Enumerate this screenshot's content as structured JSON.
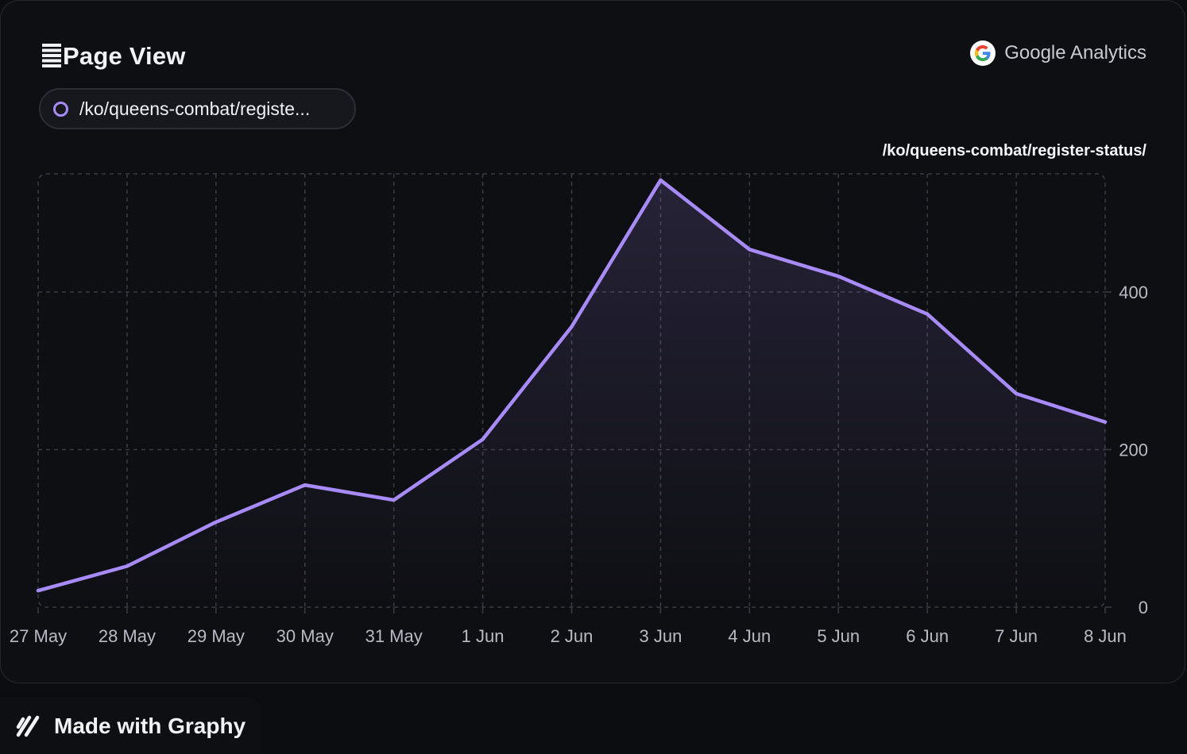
{
  "header": {
    "title": "Page View",
    "title_icon": "page-view-icon",
    "source_label": "Google Analytics",
    "source_icon": "google-logo-icon"
  },
  "legend": {
    "label": "/ko/queens-combat/registe..."
  },
  "series_title": "/ko/queens-combat/register-status/",
  "footer": {
    "label": "Made with Graphy",
    "icon": "graphy-logo-icon"
  },
  "colors": {
    "line": "#a78bfa",
    "background": "#0e0f13",
    "grid": "#3a3b42",
    "axis_text": "#b9bac2"
  },
  "chart_data": {
    "type": "area",
    "categories": [
      "27 May",
      "28 May",
      "29 May",
      "30 May",
      "31 May",
      "1 Jun",
      "2 Jun",
      "3 Jun",
      "4 Jun",
      "5 Jun",
      "6 Jun",
      "7 Jun",
      "8 Jun"
    ],
    "series": [
      {
        "name": "/ko/queens-combat/register-status/",
        "values": [
          21,
          52,
          108,
          155,
          136,
          213,
          356,
          542,
          454,
          420,
          372,
          271,
          235
        ]
      }
    ],
    "y_ticks": [
      0,
      200,
      400
    ],
    "ylim": [
      0,
      550
    ],
    "y_axis_position": "right",
    "grid": true,
    "legend_position": "top-left"
  }
}
